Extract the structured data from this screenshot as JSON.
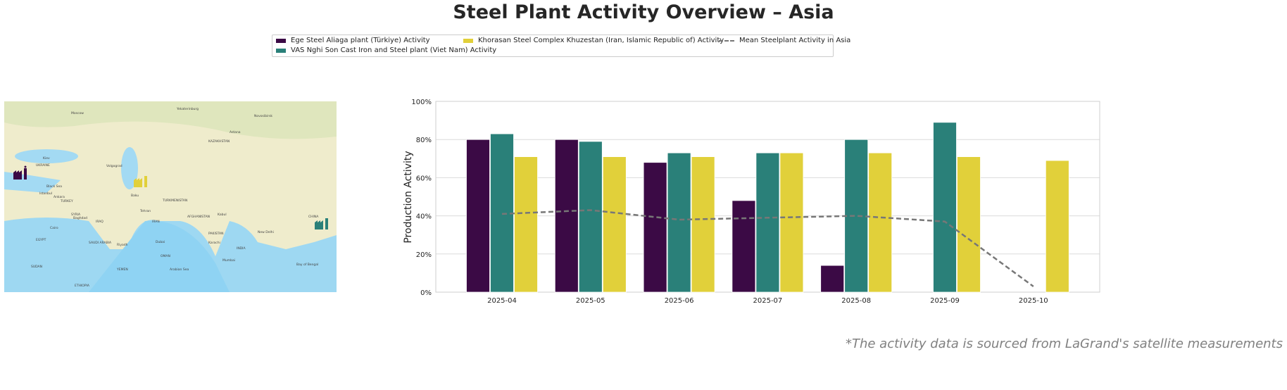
{
  "title": "Steel Plant Activity Overview – Asia",
  "legend": [
    {
      "label": "Ege Steel Aliaga plant (Türkiye) Activity",
      "color": "#3b0a45",
      "kind": "bar"
    },
    {
      "label": "VAS Nghi Son Cast Iron and Steel plant (Viet Nam) Activity",
      "color": "#2a8079",
      "kind": "bar"
    },
    {
      "label": "Khorasan Steel Complex Khuzestan (Iran, Islamic Republic of) Activity",
      "color": "#e1d03a",
      "kind": "bar"
    },
    {
      "label": "Mean Steelplant Activity in Asia",
      "color": "#777777",
      "kind": "dashed-line"
    }
  ],
  "map": {
    "labels": [
      "Moscow",
      "Yekaterinburg",
      "Novosibirsk",
      "KAZAKHSTAN",
      "Astana",
      "UKRAINE",
      "Kiev",
      "Volgograd",
      "Black Sea",
      "TURKEY",
      "Ankara",
      "Istanbul",
      "Baku",
      "TURKMENISTAN",
      "Tehran",
      "IRAN",
      "IRAQ",
      "Baghdad",
      "SYRIA",
      "EGYPT",
      "Cairo",
      "SAUDI ARABIA",
      "Riyadh",
      "Dubai",
      "OMAN",
      "YEMEN",
      "Arabian Sea",
      "AFGHANISTAN",
      "Kabul",
      "PAKISTAN",
      "Karachi",
      "INDIA",
      "New Delhi",
      "Mumbai",
      "Bay of Bengal",
      "CHINA",
      "SUDAN",
      "ETHIOPIA",
      "KENYA"
    ],
    "markers": [
      {
        "plant": "Ege Steel Aliaga plant",
        "icon": "factory-icon",
        "color": "#3b0a45"
      },
      {
        "plant": "Khorasan Steel Complex Khuzestan",
        "icon": "factory-icon",
        "color": "#e1d03a"
      },
      {
        "plant": "VAS Nghi Son Cast Iron and Steel plant",
        "icon": "factory-icon",
        "color": "#2a8079"
      }
    ]
  },
  "chart_data": {
    "type": "bar",
    "title": "",
    "xlabel": "",
    "ylabel": "Production Activity",
    "ylim": [
      0,
      100
    ],
    "yticks": [
      "0%",
      "20%",
      "40%",
      "60%",
      "80%",
      "100%"
    ],
    "grid": true,
    "legend_placement": "top-center",
    "categories": [
      "2025-04",
      "2025-05",
      "2025-06",
      "2025-07",
      "2025-08",
      "2025-09",
      "2025-10"
    ],
    "series": [
      {
        "name": "Ege Steel Aliaga plant (Türkiye) Activity",
        "type": "bar",
        "color": "#3b0a45",
        "values": [
          80,
          80,
          68,
          48,
          14,
          null,
          null
        ]
      },
      {
        "name": "VAS Nghi Son Cast Iron and Steel plant (Viet Nam) Activity",
        "type": "bar",
        "color": "#2a8079",
        "values": [
          83,
          79,
          73,
          73,
          80,
          89,
          null
        ]
      },
      {
        "name": "Khorasan Steel Complex Khuzestan (Iran, Islamic Republic of) Activity",
        "type": "bar",
        "color": "#e1d03a",
        "values": [
          71,
          71,
          71,
          73,
          73,
          71,
          69
        ]
      },
      {
        "name": "Mean Steelplant Activity in Asia",
        "type": "line",
        "style": "dashed",
        "color": "#777777",
        "values": [
          41,
          43,
          38,
          39,
          40,
          37,
          3
        ]
      }
    ]
  },
  "source_note": "*The activity data is sourced from LaGrand's satellite measurements"
}
